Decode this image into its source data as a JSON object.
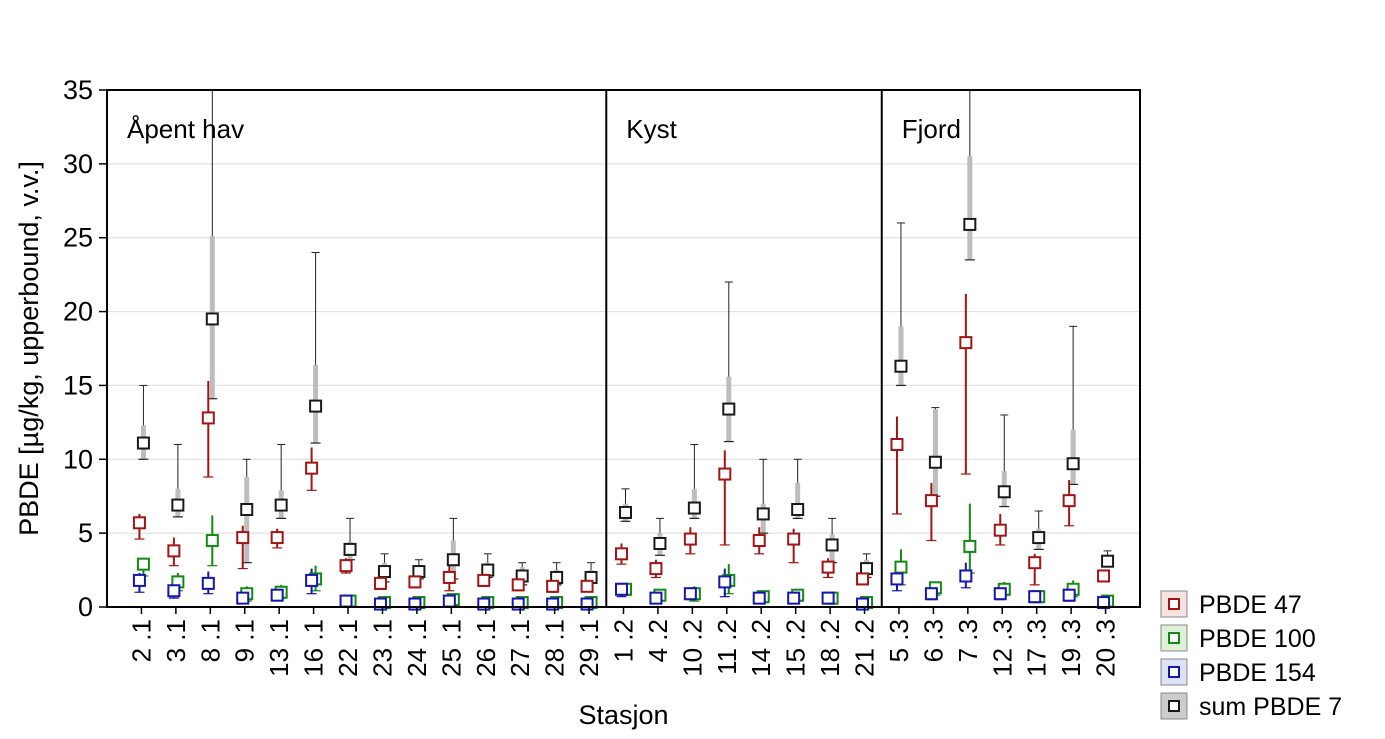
{
  "chart_data": {
    "type": "scatter",
    "xlabel": "Stasjon",
    "ylabel": "PBDE [µg/kg, upperbound, v.v.]",
    "ylim": [
      0,
      35
    ],
    "yticks": [
      0,
      5,
      10,
      15,
      20,
      25,
      30,
      35
    ],
    "grid": "horizontal",
    "legend_position": "bottom-right",
    "categories": [
      "2 .1",
      "3 .1",
      "8 .1",
      "9 .1",
      "13 .1",
      "16 .1",
      "22 .1",
      "23 .1",
      "24 .1",
      "25 .1",
      "26 .1",
      "27 .1",
      "28 .1",
      "29 .1",
      "1 .2",
      "4 .2",
      "10 .2",
      "11 .2",
      "14 .2",
      "15 .2",
      "18 .2",
      "21 .2",
      "5 .3",
      "6 .3",
      "7 .3",
      "12 .3",
      "17 .3",
      "19 .3",
      "20 .3"
    ],
    "regions": [
      {
        "label": "Åpent hav",
        "start": 0,
        "end": 13
      },
      {
        "label": "Kyst",
        "start": 14,
        "end": 21
      },
      {
        "label": "Fjord",
        "start": 22,
        "end": 28
      }
    ],
    "series": [
      {
        "name": "PBDE 47",
        "color": "#a31515",
        "fill": "#f7e2e2",
        "values": [
          5.7,
          3.8,
          12.8,
          4.7,
          4.7,
          9.4,
          2.8,
          1.6,
          1.7,
          2.0,
          1.8,
          1.5,
          1.4,
          1.4,
          3.6,
          2.6,
          4.6,
          9.0,
          4.5,
          4.6,
          2.7,
          1.9,
          11.0,
          7.2,
          17.9,
          5.2,
          3.0,
          7.2,
          2.1
        ],
        "min": [
          4.6,
          2.8,
          8.8,
          2.6,
          4.0,
          7.9,
          2.3,
          1.2,
          1.3,
          1.1,
          1.4,
          1.1,
          1.0,
          1.1,
          2.9,
          2.0,
          3.6,
          4.2,
          3.6,
          3.0,
          2.0,
          1.5,
          6.3,
          4.5,
          9.0,
          4.2,
          1.5,
          5.5,
          1.8
        ],
        "max": [
          6.3,
          4.7,
          15.3,
          5.5,
          5.3,
          10.8,
          3.3,
          2.1,
          2.1,
          2.8,
          2.2,
          1.9,
          1.9,
          1.7,
          4.3,
          3.2,
          5.4,
          10.6,
          5.4,
          5.3,
          3.3,
          2.3,
          12.9,
          8.4,
          21.2,
          6.3,
          3.6,
          8.6,
          2.5
        ]
      },
      {
        "name": "PBDE 100",
        "color": "#138a13",
        "fill": "#dff0d8",
        "values": [
          2.9,
          1.7,
          4.5,
          0.9,
          1.0,
          1.9,
          0.4,
          0.3,
          0.3,
          0.5,
          0.3,
          0.3,
          0.3,
          0.3,
          1.2,
          0.8,
          0.9,
          1.8,
          0.7,
          0.8,
          0.6,
          0.3,
          2.7,
          1.3,
          4.1,
          1.2,
          0.7,
          1.2,
          0.4
        ],
        "min": [
          2.1,
          1.1,
          2.8,
          0.4,
          0.6,
          1.1,
          0.2,
          0.1,
          0.1,
          0.2,
          0.1,
          0.1,
          0.1,
          0.1,
          0.8,
          0.4,
          0.4,
          0.9,
          0.3,
          0.4,
          0.2,
          0.1,
          1.5,
          0.8,
          2.3,
          0.8,
          0.3,
          0.7,
          0.2
        ],
        "max": [
          3.3,
          2.3,
          6.2,
          1.4,
          1.5,
          2.8,
          0.7,
          0.5,
          0.5,
          0.8,
          0.5,
          0.5,
          0.5,
          0.5,
          1.6,
          1.1,
          1.4,
          2.9,
          1.1,
          1.2,
          0.9,
          0.5,
          3.9,
          1.7,
          7.0,
          1.7,
          1.1,
          1.8,
          0.6
        ]
      },
      {
        "name": "PBDE 154",
        "color": "#1515b0",
        "fill": "#dde2f5",
        "values": [
          1.8,
          1.1,
          1.6,
          0.6,
          0.8,
          1.8,
          0.4,
          0.2,
          0.2,
          0.4,
          0.2,
          0.2,
          0.2,
          0.2,
          1.2,
          0.6,
          0.9,
          1.7,
          0.6,
          0.6,
          0.6,
          0.2,
          1.9,
          0.9,
          2.1,
          0.9,
          0.7,
          0.8,
          0.3
        ],
        "min": [
          1.0,
          0.6,
          0.9,
          0.3,
          0.5,
          0.9,
          0.1,
          0.1,
          0.1,
          0.1,
          0.1,
          0.1,
          0.1,
          0.1,
          0.7,
          0.3,
          0.5,
          0.7,
          0.3,
          0.3,
          0.3,
          0.1,
          1.1,
          0.5,
          1.3,
          0.5,
          0.3,
          0.4,
          0.1
        ],
        "max": [
          2.3,
          1.5,
          2.4,
          1.0,
          1.1,
          2.6,
          0.6,
          0.4,
          0.4,
          0.6,
          0.4,
          0.4,
          0.4,
          0.4,
          1.6,
          0.9,
          1.3,
          2.6,
          1.0,
          1.0,
          0.9,
          0.4,
          2.6,
          1.3,
          3.0,
          1.3,
          1.0,
          1.2,
          0.5
        ]
      },
      {
        "name": "sum PBDE 7",
        "color": "#1a1a1a",
        "fill": "#cccccc",
        "values": [
          11.1,
          6.9,
          19.5,
          6.6,
          6.9,
          13.6,
          3.9,
          2.4,
          2.4,
          3.2,
          2.5,
          2.1,
          2.0,
          2.0,
          6.4,
          4.3,
          6.7,
          13.4,
          6.3,
          6.6,
          4.2,
          2.6,
          16.3,
          9.8,
          25.9,
          7.8,
          4.7,
          9.7,
          3.1
        ],
        "min": [
          10.0,
          6.1,
          14.1,
          3.0,
          6.0,
          11.1,
          3.2,
          1.7,
          1.9,
          1.9,
          2.0,
          1.5,
          1.5,
          1.6,
          5.8,
          3.5,
          6.0,
          11.2,
          5.0,
          6.0,
          3.0,
          2.0,
          15.0,
          7.5,
          23.5,
          6.8,
          3.9,
          8.3,
          2.8
        ],
        "max": [
          12.3,
          8.0,
          25.1,
          8.8,
          7.9,
          16.4,
          4.4,
          3.0,
          2.8,
          4.5,
          3.0,
          2.7,
          2.5,
          2.5,
          7.0,
          5.0,
          8.0,
          15.6,
          7.0,
          8.4,
          4.9,
          3.2,
          19.0,
          13.4,
          30.5,
          9.2,
          5.3,
          12.0,
          3.5
        ],
        "whisker_max": [
          15.0,
          11.0,
          35.0,
          10.0,
          11.0,
          24.0,
          6.0,
          3.6,
          3.2,
          6.0,
          3.6,
          3.0,
          3.0,
          3.0,
          8.0,
          6.0,
          11.0,
          22.0,
          10.0,
          10.0,
          6.0,
          3.6,
          26.0,
          13.5,
          35.0,
          13.0,
          6.5,
          19.0,
          3.8
        ]
      }
    ]
  }
}
